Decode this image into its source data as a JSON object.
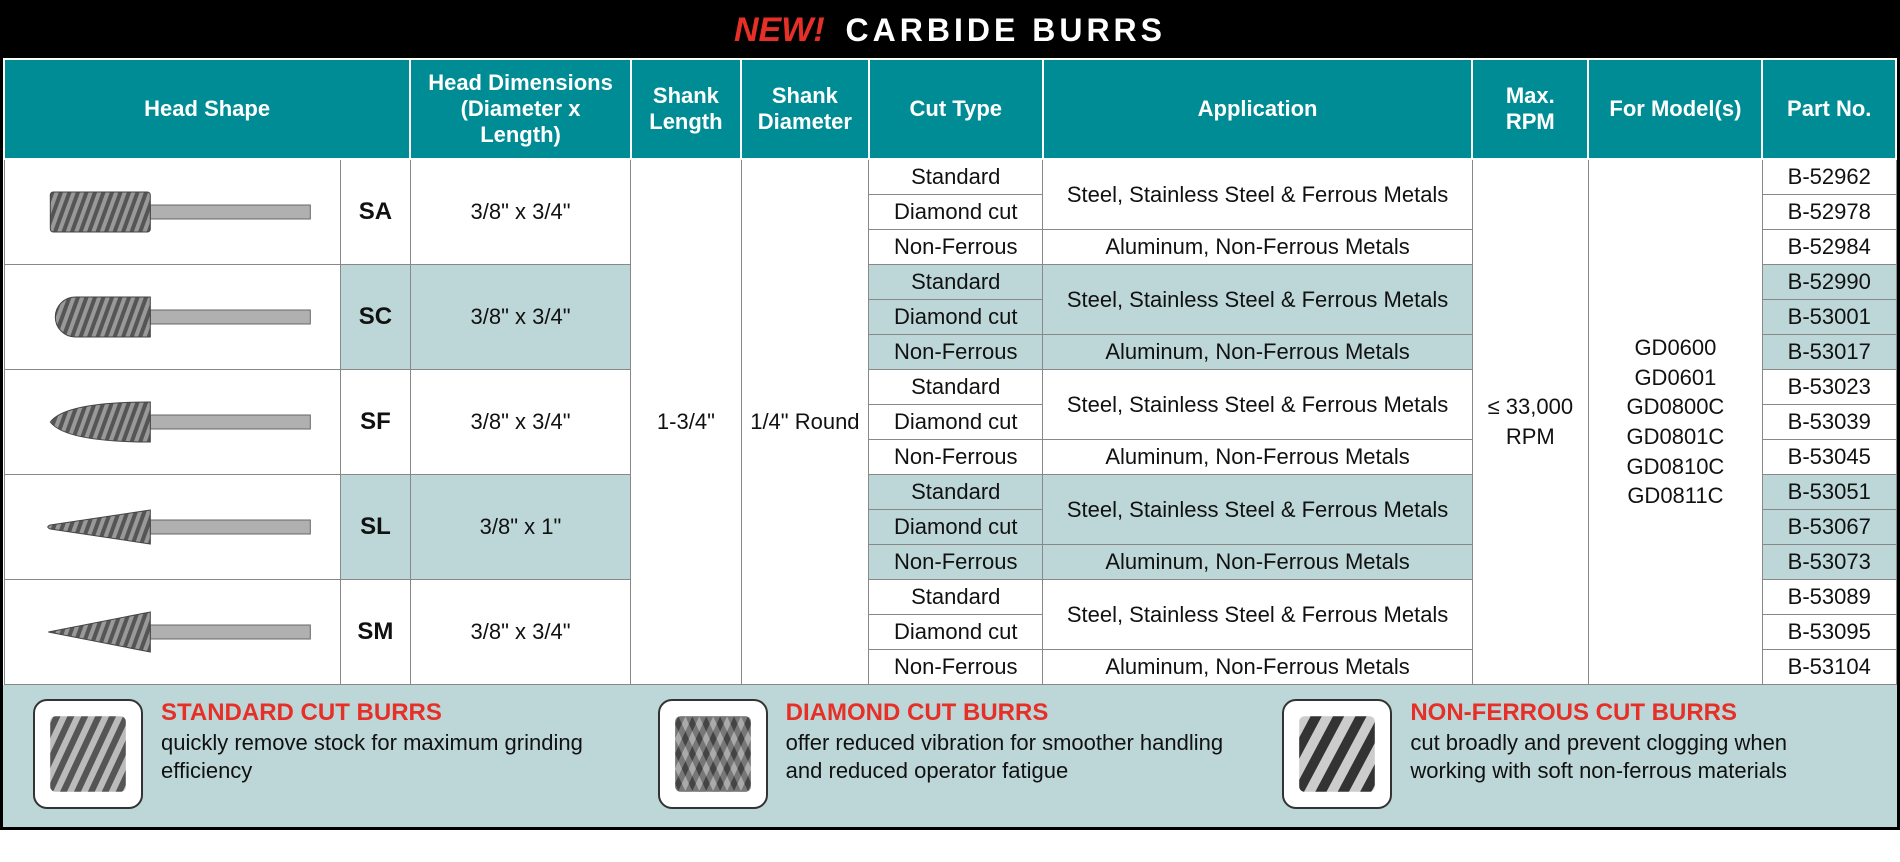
{
  "title": {
    "new_label": "NEW!",
    "main": "CARBIDE BURRS"
  },
  "colors": {
    "header_bg": "#008c95",
    "header_text": "#ffffff",
    "title_bg": "#000000",
    "accent_red": "#e63027",
    "shade_bg": "#bdd7d8",
    "border": "#888888"
  },
  "columns": {
    "head_shape": "Head Shape",
    "head_dims": "Head Dimensions (Diameter x Length)",
    "shank_length": "Shank Length",
    "shank_diameter": "Shank Diameter",
    "cut_type": "Cut Type",
    "application": "Application",
    "max_rpm": "Max. RPM",
    "for_models": "For Model(s)",
    "part_no": "Part No."
  },
  "shared": {
    "shank_length": "1-3/4\"",
    "shank_diameter": "1/4\" Round",
    "max_rpm": "≤ 33,000 RPM",
    "models": "GD0600\nGD0601\nGD0800C\nGD0801C\nGD0810C\nGD0811C"
  },
  "cut_types": {
    "standard": "Standard",
    "diamond": "Diamond cut",
    "nonferrous": "Non-Ferrous"
  },
  "applications": {
    "steel": "Steel, Stainless Steel & Ferrous Metals",
    "aluminum": "Aluminum, Non-Ferrous Metals"
  },
  "shapes": [
    {
      "code": "SA",
      "dims": "3/8\" x 3/4\"",
      "shaded": false,
      "parts": [
        "B-52962",
        "B-52978",
        "B-52984"
      ]
    },
    {
      "code": "SC",
      "dims": "3/8\" x 3/4\"",
      "shaded": true,
      "parts": [
        "B-52990",
        "B-53001",
        "B-53017"
      ]
    },
    {
      "code": "SF",
      "dims": "3/8\" x 3/4\"",
      "shaded": false,
      "parts": [
        "B-53023",
        "B-53039",
        "B-53045"
      ]
    },
    {
      "code": "SL",
      "dims": "3/8\" x 1\"",
      "shaded": true,
      "parts": [
        "B-53051",
        "B-53067",
        "B-53073"
      ]
    },
    {
      "code": "SM",
      "dims": "3/8\" x 3/4\"",
      "shaded": false,
      "parts": [
        "B-53089",
        "B-53095",
        "B-53104"
      ]
    }
  ],
  "footer": [
    {
      "title": "STANDARD CUT BURRS",
      "desc": "quickly remove stock for maximum grinding efficiency"
    },
    {
      "title": "DIAMOND CUT BURRS",
      "desc": "offer reduced vibration for smoother handling and reduced operator fatigue"
    },
    {
      "title": "NON-FERROUS CUT BURRS",
      "desc": "cut broadly and prevent clogging when working with soft non-ferrous materials"
    }
  ]
}
